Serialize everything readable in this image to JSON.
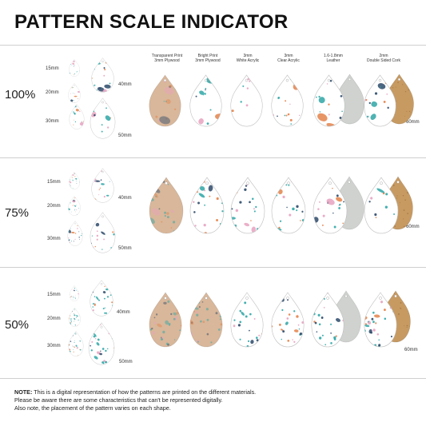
{
  "title": "PATTERN SCALE INDICATOR",
  "columns": [
    {
      "line1": "Transparent Print",
      "line2": "3mm Plywood"
    },
    {
      "line1": "Bright Print",
      "line2": "3mm Plywood"
    },
    {
      "line1": "3mm",
      "line2": "White Acrylic"
    },
    {
      "line1": "3mm",
      "line2": "Clear Acrylic"
    },
    {
      "line1": "1.6-1.8mm",
      "line2": "Leather"
    },
    {
      "line1": "2mm",
      "line2": "Double Sided Cork"
    }
  ],
  "rows": [
    {
      "scale": "100%",
      "sizes": [
        "15mm",
        "20mm",
        "30mm",
        "40mm",
        "50mm"
      ],
      "material_size": "60mm"
    },
    {
      "scale": "75%",
      "sizes": [
        "15mm",
        "20mm",
        "30mm",
        "40mm",
        "50mm"
      ],
      "material_size": "60mm"
    },
    {
      "scale": "50%",
      "sizes": [
        "15mm",
        "20mm",
        "30mm",
        "40mm",
        "50mm"
      ],
      "material_size": "60mm"
    }
  ],
  "note": {
    "label": "NOTE:",
    "line1": " This is a digital representation of how the patterns are printed on the different materials.",
    "line2": "Please be aware there are some characteristics that can't be represented digitally.",
    "line3": "Also note, the placement of the pattern varies on each shape."
  },
  "colors": {
    "pattern_teal": "#2fa6a6",
    "pattern_pink": "#e8a2c0",
    "pattern_orange": "#e4824a",
    "pattern_navy": "#2d4a6a",
    "plywood": "#d9b79a",
    "cork": "#c79a62",
    "leather": "#cfd2cf"
  }
}
